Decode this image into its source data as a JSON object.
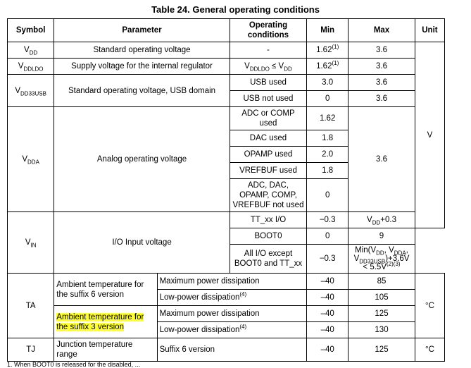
{
  "title": "Table 24. General operating conditions",
  "headers": [
    "Symbol",
    "Parameter",
    "Operating conditions",
    "Min",
    "Max",
    "Unit"
  ],
  "rows": {
    "vdd": {
      "sym": "V",
      "sym_sub": "DD",
      "param": "Standard operating voltage",
      "cond": "-",
      "min": "1.62",
      "min_sup": "(1)",
      "max": "3.6"
    },
    "vddldo": {
      "sym": "V",
      "sym_sub": "DDLDO",
      "param": "Supply voltage for the internal regulator",
      "cond_a": "V",
      "cond_a_sub": "DDLDO",
      "cond_op": " ≤ V",
      "cond_b_sub": "DD",
      "min": "1.62",
      "min_sup": "(1)",
      "max": "3.6"
    },
    "vdd33usb": {
      "sym": "V",
      "sym_sub": "DD33USB",
      "param": "Standard operating voltage, USB domain",
      "c1": "USB used",
      "min1": "3.0",
      "max1": "3.6",
      "c2": "USB not used",
      "min2": "0",
      "max2": "3.6"
    },
    "vdda": {
      "sym": "V",
      "sym_sub": "DDA",
      "param": "Analog operating voltage",
      "max": "3.6",
      "unit": "V",
      "c1": "ADC or COMP used",
      "m1": "1.62",
      "c2": "DAC used",
      "m2": "1.8",
      "c3": "OPAMP used",
      "m3": "2.0",
      "c4": "VREFBUF used",
      "m4": "1.8",
      "c5": "ADC, DAC, OPAMP, COMP, VREFBUF not used",
      "m5": "0"
    },
    "vin": {
      "sym": "V",
      "sym_sub": "IN",
      "param": "I/O Input voltage",
      "c1": "TT_xx I/O",
      "min1": "−0.3",
      "max1_a": "V",
      "max1_sub": "DD",
      "max1_b": "+0.3",
      "c2": "BOOT0",
      "min2": "0",
      "max2": "9",
      "c3": "All I/O except BOOT0 and TT_xx",
      "min3": "−0.3",
      "max3_a": "Min(V",
      "max3_s1": "DD",
      "max3_b": ", V",
      "max3_s2": "DDA",
      "max3_c": ",",
      "max3_d": "V",
      "max3_s3": "DD33USB",
      "max3_e": ")+3.6V",
      "max3_f": "< 5.5V",
      "max3_sup": "(2)(3)"
    },
    "ta": {
      "sym": "TA",
      "unit": "°C",
      "g1": "Ambient temperature for the suffix 6 version",
      "g1c1": "Maximum power dissipation",
      "g1min1": "–40",
      "g1max1": "85",
      "g1c2": "Low-power dissipation",
      "g1c2_sup": "(4)",
      "g1min2": "–40",
      "g1max2": "105",
      "g2": "Ambient temperature for the suffix 3 version",
      "g2c1": "Maximum power dissipation",
      "g2min1": "–40",
      "g2max1": "125",
      "g2c2": "Low-power dissipation",
      "g2c2_sup": "(4)",
      "g2min2": "–40",
      "g2max2": "130"
    },
    "tj": {
      "sym": "TJ",
      "param": "Junction temperature range",
      "cond": "Suffix 6 version",
      "min": "–40",
      "max": "125",
      "unit": "°C"
    }
  },
  "footnote_cut": "1.   When BOOT0 is released for the disabled, ..."
}
